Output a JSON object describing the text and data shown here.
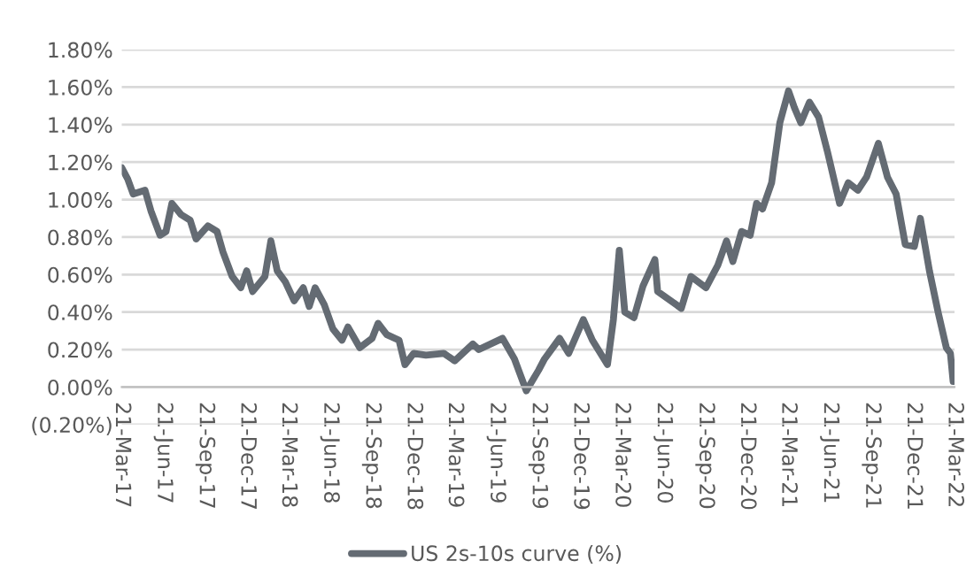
{
  "chart_data": {
    "type": "line",
    "x": [
      "2017-03-21",
      "2017-04-03",
      "2017-04-15",
      "2017-05-11",
      "2017-05-24",
      "2017-06-13",
      "2017-06-26",
      "2017-07-09",
      "2017-07-29",
      "2017-08-18",
      "2017-08-31",
      "2017-09-26",
      "2017-10-16",
      "2017-10-29",
      "2017-11-18",
      "2017-12-07",
      "2017-12-20",
      "2018-01-02",
      "2018-01-29",
      "2018-02-11",
      "2018-02-25",
      "2018-03-15",
      "2018-04-03",
      "2018-04-23",
      "2018-05-06",
      "2018-05-19",
      "2018-06-08",
      "2018-06-27",
      "2018-07-17",
      "2018-07-30",
      "2018-08-25",
      "2018-09-21",
      "2018-10-04",
      "2018-10-23",
      "2018-11-19",
      "2018-12-02",
      "2018-12-21",
      "2019-01-17",
      "2019-02-25",
      "2019-03-21",
      "2019-04-30",
      "2019-05-13",
      "2019-07-04",
      "2019-07-30",
      "2019-08-25",
      "2019-09-21",
      "2019-10-04",
      "2019-11-06",
      "2019-11-26",
      "2019-12-28",
      "2020-01-17",
      "2020-02-19",
      "2020-03-03",
      "2020-03-16",
      "2020-03-28",
      "2020-04-17",
      "2020-05-07",
      "2020-06-02",
      "2020-06-08",
      "2020-07-30",
      "2020-08-20",
      "2020-09-22",
      "2020-10-18",
      "2020-11-06",
      "2020-11-20",
      "2020-12-09",
      "2020-12-28",
      "2021-01-11",
      "2021-01-24",
      "2021-02-13",
      "2021-03-03",
      "2021-03-22",
      "2021-04-04",
      "2021-04-18",
      "2021-05-07",
      "2021-05-27",
      "2021-06-16",
      "2021-07-12",
      "2021-07-31",
      "2021-08-21",
      "2021-09-09",
      "2021-10-05",
      "2021-10-25",
      "2021-11-13",
      "2021-12-03",
      "2021-12-23",
      "2022-01-05",
      "2022-01-25",
      "2022-02-13",
      "2022-03-03",
      "2022-03-12",
      "2022-03-18"
    ],
    "series": [
      {
        "name": "US 2s-10s curve (%)",
        "color": "#646b73",
        "values": [
          1.17,
          1.11,
          1.03,
          1.05,
          0.94,
          0.81,
          0.83,
          0.98,
          0.92,
          0.89,
          0.79,
          0.86,
          0.83,
          0.72,
          0.59,
          0.53,
          0.62,
          0.51,
          0.59,
          0.78,
          0.62,
          0.56,
          0.46,
          0.53,
          0.43,
          0.53,
          0.44,
          0.31,
          0.25,
          0.32,
          0.21,
          0.26,
          0.34,
          0.28,
          0.25,
          0.12,
          0.18,
          0.17,
          0.18,
          0.14,
          0.23,
          0.2,
          0.26,
          0.15,
          -0.02,
          0.09,
          0.15,
          0.26,
          0.18,
          0.36,
          0.25,
          0.12,
          0.36,
          0.73,
          0.4,
          0.37,
          0.54,
          0.68,
          0.51,
          0.42,
          0.59,
          0.53,
          0.65,
          0.78,
          0.67,
          0.83,
          0.81,
          0.98,
          0.95,
          1.09,
          1.41,
          1.58,
          1.49,
          1.41,
          1.52,
          1.44,
          1.25,
          0.98,
          1.09,
          1.05,
          1.12,
          1.3,
          1.12,
          1.03,
          0.76,
          0.75,
          0.9,
          0.62,
          0.4,
          0.21,
          0.18,
          0.03
        ]
      }
    ],
    "xlim": [
      "2017-03-21",
      "2022-03-21"
    ],
    "xticks": [
      {
        "value": "2017-03-21",
        "label": "21-Mar-17"
      },
      {
        "value": "2017-06-21",
        "label": "21-Jun-17"
      },
      {
        "value": "2017-09-21",
        "label": "21-Sep-17"
      },
      {
        "value": "2017-12-21",
        "label": "21-Dec-17"
      },
      {
        "value": "2018-03-21",
        "label": "21-Mar-18"
      },
      {
        "value": "2018-06-21",
        "label": "21-Jun-18"
      },
      {
        "value": "2018-09-21",
        "label": "21-Sep-18"
      },
      {
        "value": "2018-12-21",
        "label": "21-Dec-18"
      },
      {
        "value": "2019-03-21",
        "label": "21-Mar-19"
      },
      {
        "value": "2019-06-21",
        "label": "21-Jun-19"
      },
      {
        "value": "2019-09-21",
        "label": "21-Sep-19"
      },
      {
        "value": "2019-12-21",
        "label": "21-Dec-19"
      },
      {
        "value": "2020-03-21",
        "label": "21-Mar-20"
      },
      {
        "value": "2020-06-21",
        "label": "21-Jun-20"
      },
      {
        "value": "2020-09-21",
        "label": "21-Sep-20"
      },
      {
        "value": "2020-12-21",
        "label": "21-Dec-20"
      },
      {
        "value": "2021-03-21",
        "label": "21-Mar-21"
      },
      {
        "value": "2021-06-21",
        "label": "21-Jun-21"
      },
      {
        "value": "2021-09-21",
        "label": "21-Sep-21"
      },
      {
        "value": "2021-12-21",
        "label": "21-Dec-21"
      },
      {
        "value": "2022-03-21",
        "label": "21-Mar-22"
      }
    ],
    "ylim": [
      -0.2,
      1.8
    ],
    "yticks": [
      {
        "value": -0.2,
        "label": "(0.20%)"
      },
      {
        "value": 0,
        "label": "0.00%"
      },
      {
        "value": 0.2,
        "label": "0.20%"
      },
      {
        "value": 0.4,
        "label": "0.40%"
      },
      {
        "value": 0.6,
        "label": "0.60%"
      },
      {
        "value": 0.8,
        "label": "0.80%"
      },
      {
        "value": 1.0,
        "label": "1.00%"
      },
      {
        "value": 1.2,
        "label": "1.20%"
      },
      {
        "value": 1.4,
        "label": "1.40%"
      },
      {
        "value": 1.6,
        "label": "1.60%"
      },
      {
        "value": 1.8,
        "label": "1.80%"
      }
    ],
    "grid": "y",
    "legend": "bottom",
    "line_style": "solid",
    "marker": "none"
  }
}
